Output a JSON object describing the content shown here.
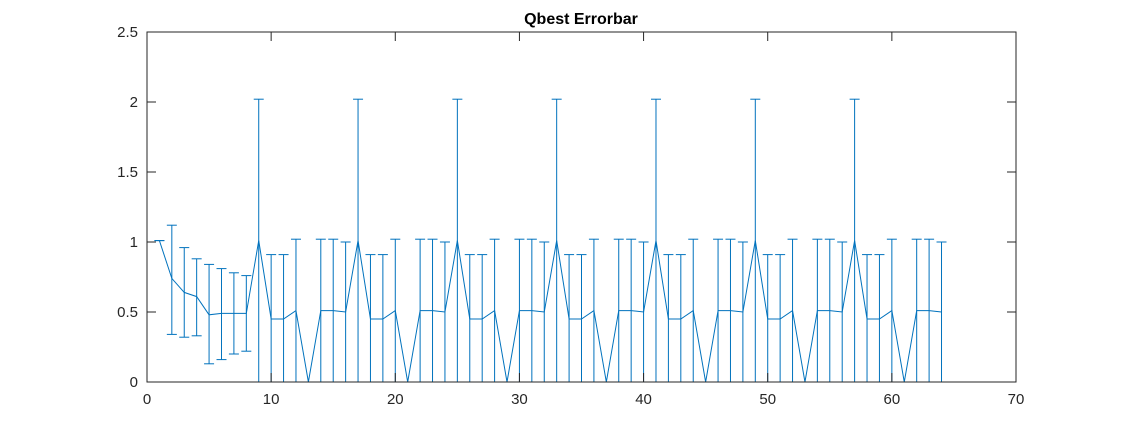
{
  "chart_data": {
    "type": "errorbar",
    "title": "Qbest Errorbar",
    "xlabel": "",
    "ylabel": "",
    "xlim": [
      0,
      70
    ],
    "ylim": [
      0,
      2.5
    ],
    "xticks": [
      0,
      10,
      20,
      30,
      40,
      50,
      60,
      70
    ],
    "yticks": [
      0,
      0.5,
      1,
      1.5,
      2,
      2.5
    ],
    "xtick_labels": [
      "0",
      "10",
      "20",
      "30",
      "40",
      "50",
      "60",
      "70"
    ],
    "ytick_labels": [
      "0",
      "0.5",
      "1",
      "1.5",
      "2",
      "2.5"
    ],
    "grid": false,
    "box": true,
    "series_color": "#0072BD",
    "x": [
      1,
      2,
      3,
      4,
      5,
      6,
      7,
      8,
      9,
      10,
      11,
      12,
      13,
      14,
      15,
      16,
      17,
      18,
      19,
      20,
      21,
      22,
      23,
      24,
      25,
      26,
      27,
      28,
      29,
      30,
      31,
      32,
      33,
      34,
      35,
      36,
      37,
      38,
      39,
      40,
      41,
      42,
      43,
      44,
      45,
      46,
      47,
      48,
      49,
      50,
      51,
      52,
      53,
      54,
      55,
      56,
      57,
      58,
      59,
      60,
      61,
      62,
      63,
      64
    ],
    "y": [
      1.01,
      0.74,
      0.64,
      0.61,
      0.48,
      0.49,
      0.49,
      0.49,
      1.01,
      0.45,
      0.45,
      0.51,
      0.0,
      0.51,
      0.51,
      0.5,
      1.01,
      0.45,
      0.45,
      0.51,
      0.0,
      0.51,
      0.51,
      0.5,
      1.01,
      0.45,
      0.45,
      0.51,
      0.0,
      0.51,
      0.51,
      0.5,
      1.01,
      0.45,
      0.45,
      0.51,
      0.0,
      0.51,
      0.51,
      0.5,
      1.01,
      0.45,
      0.45,
      0.51,
      0.0,
      0.51,
      0.51,
      0.5,
      1.01,
      0.45,
      0.45,
      0.51,
      0.0,
      0.51,
      0.51,
      0.5,
      1.01,
      0.45,
      0.45,
      0.51,
      0.0,
      0.51,
      0.51,
      0.5
    ],
    "lower": [
      1.01,
      0.34,
      0.32,
      0.33,
      0.13,
      0.16,
      0.2,
      0.22,
      0.0,
      0.0,
      0.0,
      0.0,
      0.0,
      0.0,
      0.0,
      0.0,
      0.0,
      0.0,
      0.0,
      0.0,
      0.0,
      0.0,
      0.0,
      0.0,
      0.0,
      0.0,
      0.0,
      0.0,
      0.0,
      0.0,
      0.0,
      0.0,
      0.0,
      0.0,
      0.0,
      0.0,
      0.0,
      0.0,
      0.0,
      0.0,
      0.0,
      0.0,
      0.0,
      0.0,
      0.0,
      0.0,
      0.0,
      0.0,
      0.0,
      0.0,
      0.0,
      0.0,
      0.0,
      0.0,
      0.0,
      0.0,
      0.0,
      0.0,
      0.0,
      0.0,
      0.0,
      0.0,
      0.0,
      0.0
    ],
    "upper": [
      1.01,
      1.12,
      0.96,
      0.88,
      0.84,
      0.81,
      0.78,
      0.76,
      2.02,
      0.91,
      0.91,
      1.02,
      0.0,
      1.02,
      1.02,
      1.0,
      2.02,
      0.91,
      0.91,
      1.02,
      0.0,
      1.02,
      1.02,
      1.0,
      2.02,
      0.91,
      0.91,
      1.02,
      0.0,
      1.02,
      1.02,
      1.0,
      2.02,
      0.91,
      0.91,
      1.02,
      0.0,
      1.02,
      1.02,
      1.0,
      2.02,
      0.91,
      0.91,
      1.02,
      0.0,
      1.02,
      1.02,
      1.0,
      2.02,
      0.91,
      0.91,
      1.02,
      0.0,
      1.02,
      1.02,
      1.0,
      2.02,
      0.91,
      0.91,
      1.02,
      0.0,
      1.02,
      1.02,
      1.0
    ]
  }
}
